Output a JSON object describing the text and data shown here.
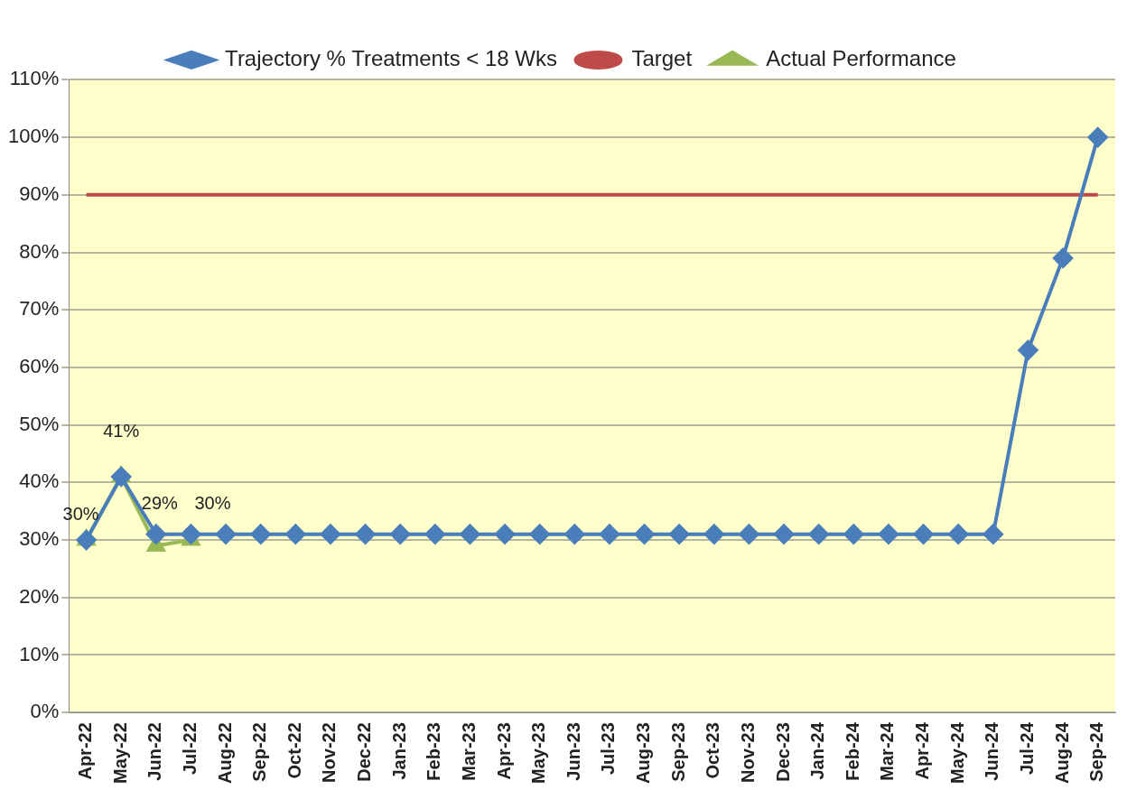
{
  "chart_data": {
    "type": "line",
    "categories": [
      "Apr-22",
      "May-22",
      "Jun-22",
      "Jul-22",
      "Aug-22",
      "Sep-22",
      "Oct-22",
      "Nov-22",
      "Dec-22",
      "Jan-23",
      "Feb-23",
      "Mar-23",
      "Apr-23",
      "May-23",
      "Jun-23",
      "Jul-23",
      "Aug-23",
      "Sep-23",
      "Oct-23",
      "Nov-23",
      "Dec-23",
      "Jan-24",
      "Feb-24",
      "Mar-24",
      "Apr-24",
      "May-24",
      "Jun-24",
      "Jul-24",
      "Aug-24",
      "Sep-24"
    ],
    "series": [
      {
        "name": "Trajectory % Treatments < 18 Wks",
        "color": "#4a7ebb",
        "marker": "diamond",
        "values": [
          30,
          41,
          31,
          31,
          31,
          31,
          31,
          31,
          31,
          31,
          31,
          31,
          31,
          31,
          31,
          31,
          31,
          31,
          31,
          31,
          31,
          31,
          31,
          31,
          31,
          31,
          31,
          63,
          79,
          100
        ]
      },
      {
        "name": "Target",
        "color": "#be4b48",
        "marker": "none",
        "values": [
          90,
          90,
          90,
          90,
          90,
          90,
          90,
          90,
          90,
          90,
          90,
          90,
          90,
          90,
          90,
          90,
          90,
          90,
          90,
          90,
          90,
          90,
          90,
          90,
          90,
          90,
          90,
          90,
          90,
          90
        ]
      },
      {
        "name": "Actual Performance",
        "color": "#98b954",
        "marker": "triangle",
        "values": [
          30,
          41,
          29,
          30,
          null,
          null,
          null,
          null,
          null,
          null,
          null,
          null,
          null,
          null,
          null,
          null,
          null,
          null,
          null,
          null,
          null,
          null,
          null,
          null,
          null,
          null,
          null,
          null,
          null,
          null
        ],
        "value_labels": [
          "30%",
          "41%",
          "29%",
          "30%",
          null,
          null,
          null,
          null,
          null,
          null,
          null,
          null,
          null,
          null,
          null,
          null,
          null,
          null,
          null,
          null,
          null,
          null,
          null,
          null,
          null,
          null,
          null,
          null,
          null,
          null
        ]
      }
    ],
    "ylim": [
      0,
      110
    ],
    "yticks": [
      {
        "value": 0,
        "label": "0%"
      },
      {
        "value": 10,
        "label": "10%"
      },
      {
        "value": 20,
        "label": "20%"
      },
      {
        "value": 30,
        "label": "30%"
      },
      {
        "value": 40,
        "label": "40%"
      },
      {
        "value": 50,
        "label": "50%"
      },
      {
        "value": 60,
        "label": "60%"
      },
      {
        "value": 70,
        "label": "70%"
      },
      {
        "value": 80,
        "label": "80%"
      },
      {
        "value": 90,
        "label": "90%"
      },
      {
        "value": 100,
        "label": "100%"
      },
      {
        "value": 110,
        "label": "110%"
      }
    ],
    "grid": "y",
    "legend": "top"
  }
}
